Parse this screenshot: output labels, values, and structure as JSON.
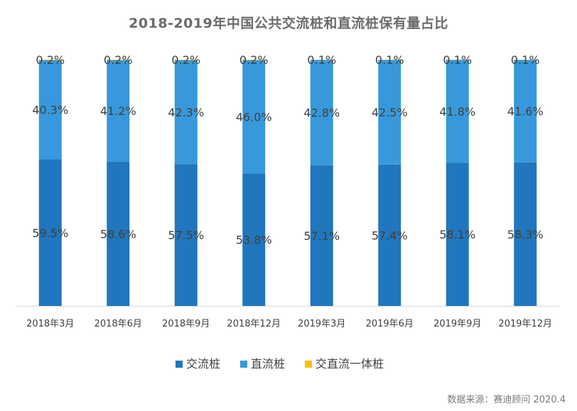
{
  "chart_data": {
    "type": "bar",
    "stacked": true,
    "normalized": true,
    "title": "2018-2019年中国公共交流桩和直流桩保有量占比",
    "categories": [
      "2018年3月",
      "2018年6月",
      "2018年9月",
      "2018年12月",
      "2019年3月",
      "2019年6月",
      "2019年9月",
      "2019年12月"
    ],
    "series": [
      {
        "name": "交流桩",
        "color": "#2176BD",
        "values": [
          59.5,
          58.6,
          57.5,
          53.8,
          57.1,
          57.4,
          58.1,
          58.3
        ],
        "labels": [
          "59.5%",
          "58.6%",
          "57.5%",
          "53.8%",
          "57.1%",
          "57.4%",
          "58.1%",
          "58.3%"
        ]
      },
      {
        "name": "直流桩",
        "color": "#3799DB",
        "values": [
          40.3,
          41.2,
          42.3,
          46.0,
          42.8,
          42.5,
          41.8,
          41.6
        ],
        "labels": [
          "40.3%",
          "41.2%",
          "42.3%",
          "46.0%",
          "42.8%",
          "42.5%",
          "41.8%",
          "41.6%"
        ]
      },
      {
        "name": "交直流一体桩",
        "color": "#FFC000",
        "values": [
          0.2,
          0.2,
          0.2,
          0.2,
          0.1,
          0.1,
          0.1,
          0.1
        ],
        "labels": [
          "0.2%",
          "0.2%",
          "0.2%",
          "0.2%",
          "0.1%",
          "0.1%",
          "0.1%",
          "0.1%"
        ]
      }
    ],
    "ylim": [
      0,
      100
    ],
    "grid": false,
    "legend_position": "bottom",
    "source": "数据来源：赛迪顾问 2020.4"
  }
}
